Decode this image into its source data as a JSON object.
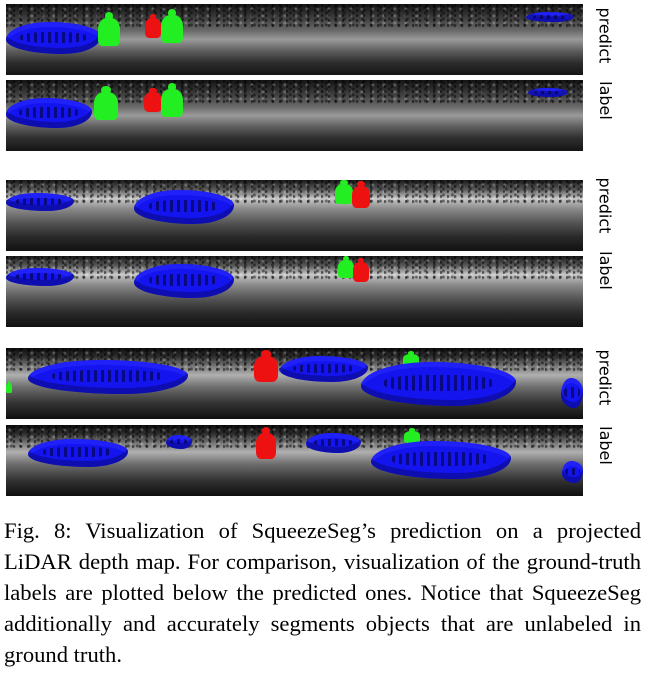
{
  "figure": {
    "rows": [
      {
        "label": "predict"
      },
      {
        "label": "label"
      },
      {
        "label": "predict"
      },
      {
        "label": "label"
      },
      {
        "label": "predict"
      },
      {
        "label": "label"
      }
    ]
  },
  "caption": {
    "text": "Fig. 8: Visualization of SqueezeSeg’s prediction on a projected LiDAR depth map. For comparison, visualization of the ground-truth labels are plotted below the predicted ones. Notice that SqueezeSeg additionally and accurately segments objects that are unlabeled in ground truth."
  },
  "colors": {
    "car": "#1414ee",
    "pedestrian": "#22ee22",
    "cyclist": "#ee1111"
  }
}
